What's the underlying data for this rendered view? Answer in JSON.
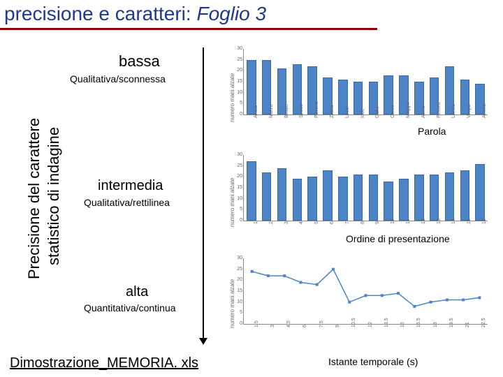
{
  "title_prefix": "precisione e caratteri: ",
  "title_italic": "Foglio 3",
  "sections": {
    "bassa": {
      "label": "bassa",
      "sub": "Qualitativa/sconnessa"
    },
    "intermedia": {
      "label": "intermedia",
      "sub": "Qualitativa/rettilinea"
    },
    "alta": {
      "label": "alta",
      "sub": "Quantitativa/continua"
    }
  },
  "y_axis_text_1": "Precisione del carattere",
  "y_axis_text_2": "statistico di indagine",
  "chart1": {
    "type": "bar",
    "y_label": "numero mani alzate",
    "ylim": [
      0,
      30
    ],
    "ytick_step": 5,
    "categories": [
      "Arista",
      "Marzo",
      "Bufalo",
      "Spade",
      "Pavone",
      "Zebra",
      "Luce",
      "Iode",
      "Gallo",
      "Cervo",
      "Maggio",
      "Asino",
      "Pecora",
      "Lontra",
      "Vespa",
      "Airone"
    ],
    "values": [
      25,
      25,
      21,
      23,
      22,
      17,
      16,
      15,
      15,
      18,
      18,
      15,
      17,
      22,
      16,
      14
    ],
    "bar_color": "#4d84c8",
    "x_annotation": "Parola"
  },
  "chart2": {
    "type": "bar",
    "y_label": "numero mani alzate",
    "ylim": [
      0,
      30
    ],
    "ytick_step": 5,
    "categories": [
      "1",
      "2",
      "3",
      "4",
      "5",
      "6",
      "7",
      "8",
      "9",
      "10",
      "11",
      "12",
      "13",
      "14",
      "15",
      "16"
    ],
    "values": [
      27,
      22,
      24,
      19,
      20,
      23,
      20,
      21,
      21,
      18,
      19,
      21,
      21,
      22,
      23,
      26
    ],
    "bar_color": "#4d84c8",
    "x_annotation": "Ordine di presentazione"
  },
  "chart3": {
    "type": "line",
    "y_label": "numero mani alzate",
    "ylim": [
      0,
      30
    ],
    "ytick_step": 5,
    "categories": [
      "1.5",
      "3",
      "4.5",
      "6",
      "7.5",
      "9",
      "10.5",
      "12",
      "13.5",
      "15",
      "16.5",
      "18",
      "19.5",
      "21",
      "22.5"
    ],
    "values": [
      24,
      22,
      22,
      19,
      18,
      25,
      10,
      13,
      13,
      14,
      8,
      10,
      11,
      11,
      12
    ],
    "line_color": "#4d84c8",
    "x_annotation": "Istante temporale (s)"
  },
  "bottom_link": "Dimostrazione_MEMORIA. xls"
}
